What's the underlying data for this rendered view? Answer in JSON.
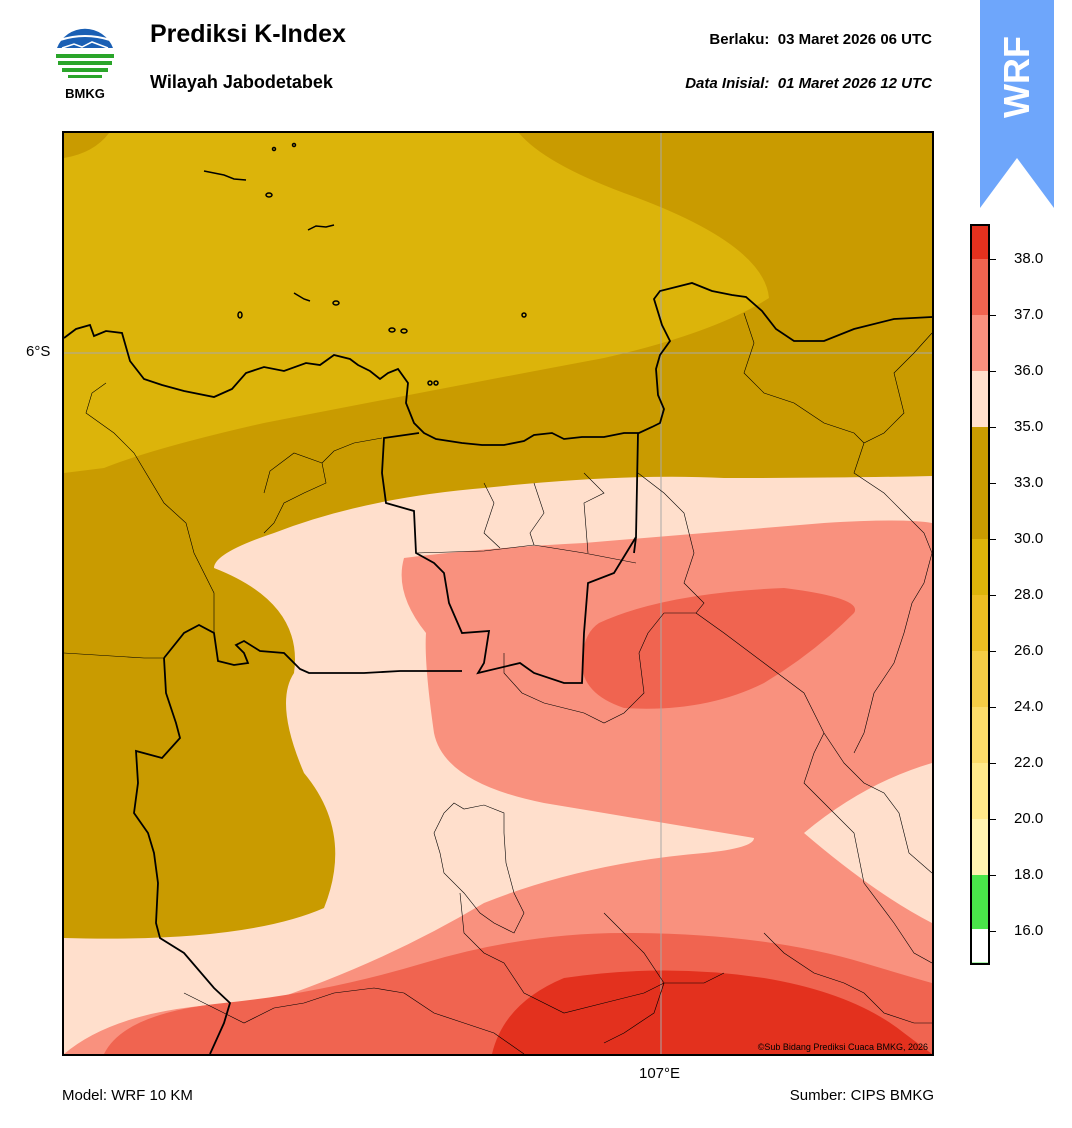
{
  "header": {
    "logo_text": "BMKG",
    "title": "Prediksi K-Index",
    "subtitle": "Wilayah Jabodetabek",
    "valid_label": "Berlaku:  03 Maret 2026 06 UTC",
    "init_label": "Data Inisial:  01 Maret 2026 12 UTC",
    "ribbon_text": "WRF"
  },
  "map": {
    "lat_label": "6°S",
    "lon_label": "107°E",
    "copyright": "©Sub Bidang Prediksi Cuaca BMKG, 2026"
  },
  "colorbar": {
    "ticks": [
      "38.0",
      "37.0",
      "36.0",
      "35.0",
      "33.0",
      "30.0",
      "28.0",
      "26.0",
      "24.0",
      "22.0",
      "20.0",
      "18.0",
      "16.0"
    ],
    "colors": {
      "lt16": "#ffffff",
      "c16": "#a8f5a8",
      "c18": "#4ae64a",
      "c20": "#fff4b0",
      "c22": "#ffe98a",
      "c24": "#fbdb69",
      "c26": "#f5cc45",
      "c28": "#ecbd22",
      "c30": "#dcb40a",
      "c33": "#c99b00",
      "c35": "#ffdfcc",
      "c36": "#f9917e",
      "c37": "#f06450",
      "c38": "#e3311e"
    }
  },
  "footer": {
    "model": "Model: WRF 10 KM",
    "source": "Sumber: CIPS BMKG"
  }
}
